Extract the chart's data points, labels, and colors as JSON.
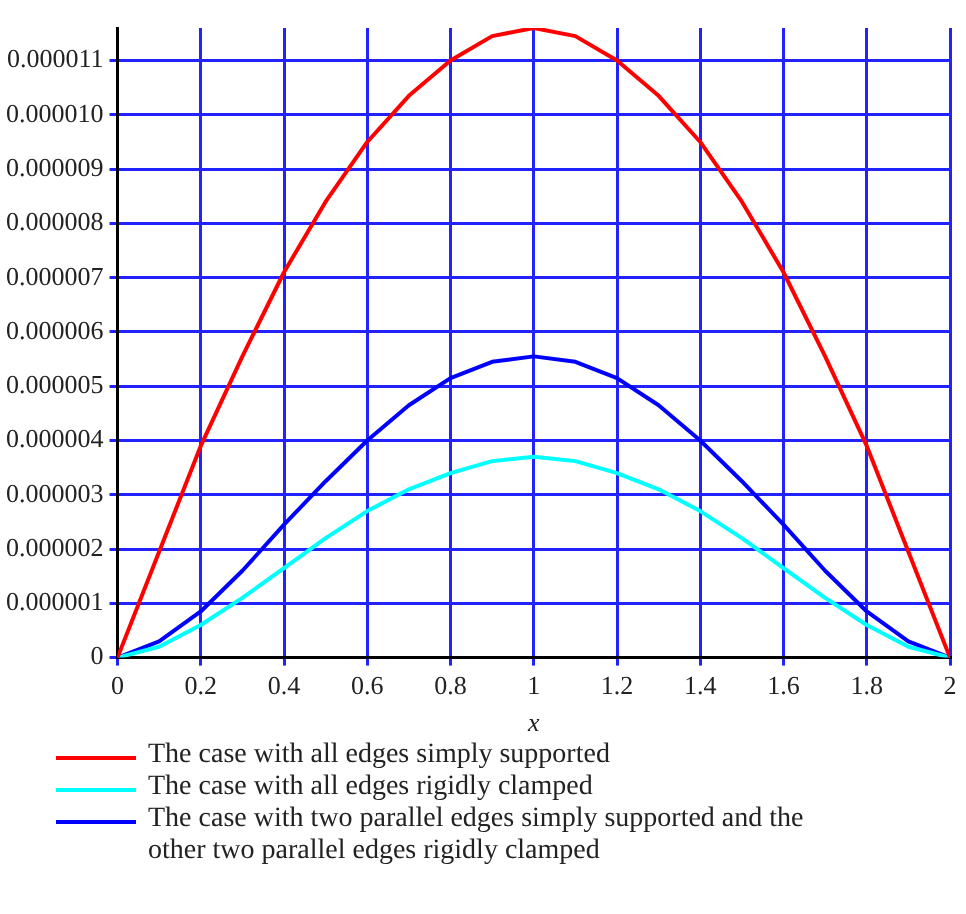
{
  "chart_data": {
    "type": "line",
    "xlabel": "x",
    "x": [
      0,
      0.1,
      0.2,
      0.3,
      0.4,
      0.5,
      0.6,
      0.7,
      0.8,
      0.9,
      1,
      1.1,
      1.2,
      1.3,
      1.4,
      1.5,
      1.6,
      1.7,
      1.8,
      1.9,
      2
    ],
    "series": [
      {
        "name": "The case with all edges simply supported",
        "color": "#ff0000",
        "values": [
          0,
          1.95e-06,
          3.9e-06,
          5.55e-06,
          7.1e-06,
          8.4e-06,
          9.5e-06,
          1.035e-05,
          1.1e-05,
          1.145e-05,
          1.16e-05,
          1.145e-05,
          1.1e-05,
          1.035e-05,
          9.5e-06,
          8.4e-06,
          7.1e-06,
          5.55e-06,
          3.9e-06,
          1.95e-06,
          0
        ]
      },
      {
        "name": "The case with all edges rigidly clamped",
        "color": "#00ffff",
        "values": [
          0,
          2e-07,
          6e-07,
          1.1e-06,
          1.65e-06,
          2.2e-06,
          2.7e-06,
          3.1e-06,
          3.4e-06,
          3.62e-06,
          3.7e-06,
          3.62e-06,
          3.4e-06,
          3.1e-06,
          2.7e-06,
          2.2e-06,
          1.65e-06,
          1.1e-06,
          6e-07,
          2e-07,
          0
        ]
      },
      {
        "name": "The case with two parallel edges simply supported and the other two parallel edges rigidly clamped",
        "color": "#0000ff",
        "values": [
          0,
          3e-07,
          8.5e-07,
          1.6e-06,
          2.45e-06,
          3.25e-06,
          4e-06,
          4.65e-06,
          5.15e-06,
          5.45e-06,
          5.55e-06,
          5.45e-06,
          5.15e-06,
          4.65e-06,
          4e-06,
          3.25e-06,
          2.45e-06,
          1.6e-06,
          8.5e-07,
          3e-07,
          0
        ]
      }
    ],
    "xlim": [
      0,
      2
    ],
    "xticks": [
      0,
      0.2,
      0.4,
      0.6,
      0.8,
      1,
      1.2,
      1.4,
      1.6,
      1.8,
      2
    ],
    "ylim": [
      0,
      1.16e-05
    ],
    "yticks": [
      0,
      {
        "value": 1e-06,
        "label": "0.000001"
      },
      {
        "value": 2e-06,
        "label": "0.000002"
      },
      {
        "value": 3e-06,
        "label": "0.000003"
      },
      {
        "value": 4e-06,
        "label": "0.000004"
      },
      {
        "value": 5e-06,
        "label": "0.000005"
      },
      {
        "value": 6e-06,
        "label": "0.000006"
      },
      {
        "value": 7e-06,
        "label": "0.000007"
      },
      {
        "value": 8e-06,
        "label": "0.000008"
      },
      {
        "value": 9e-06,
        "label": "0.000009"
      },
      {
        "value": 1e-05,
        "label": "0.000010"
      },
      {
        "value": 1.1e-05,
        "label": "0.000011"
      }
    ],
    "grid": true,
    "legend": "bottom",
    "marker": "none",
    "line_style": "solid"
  }
}
